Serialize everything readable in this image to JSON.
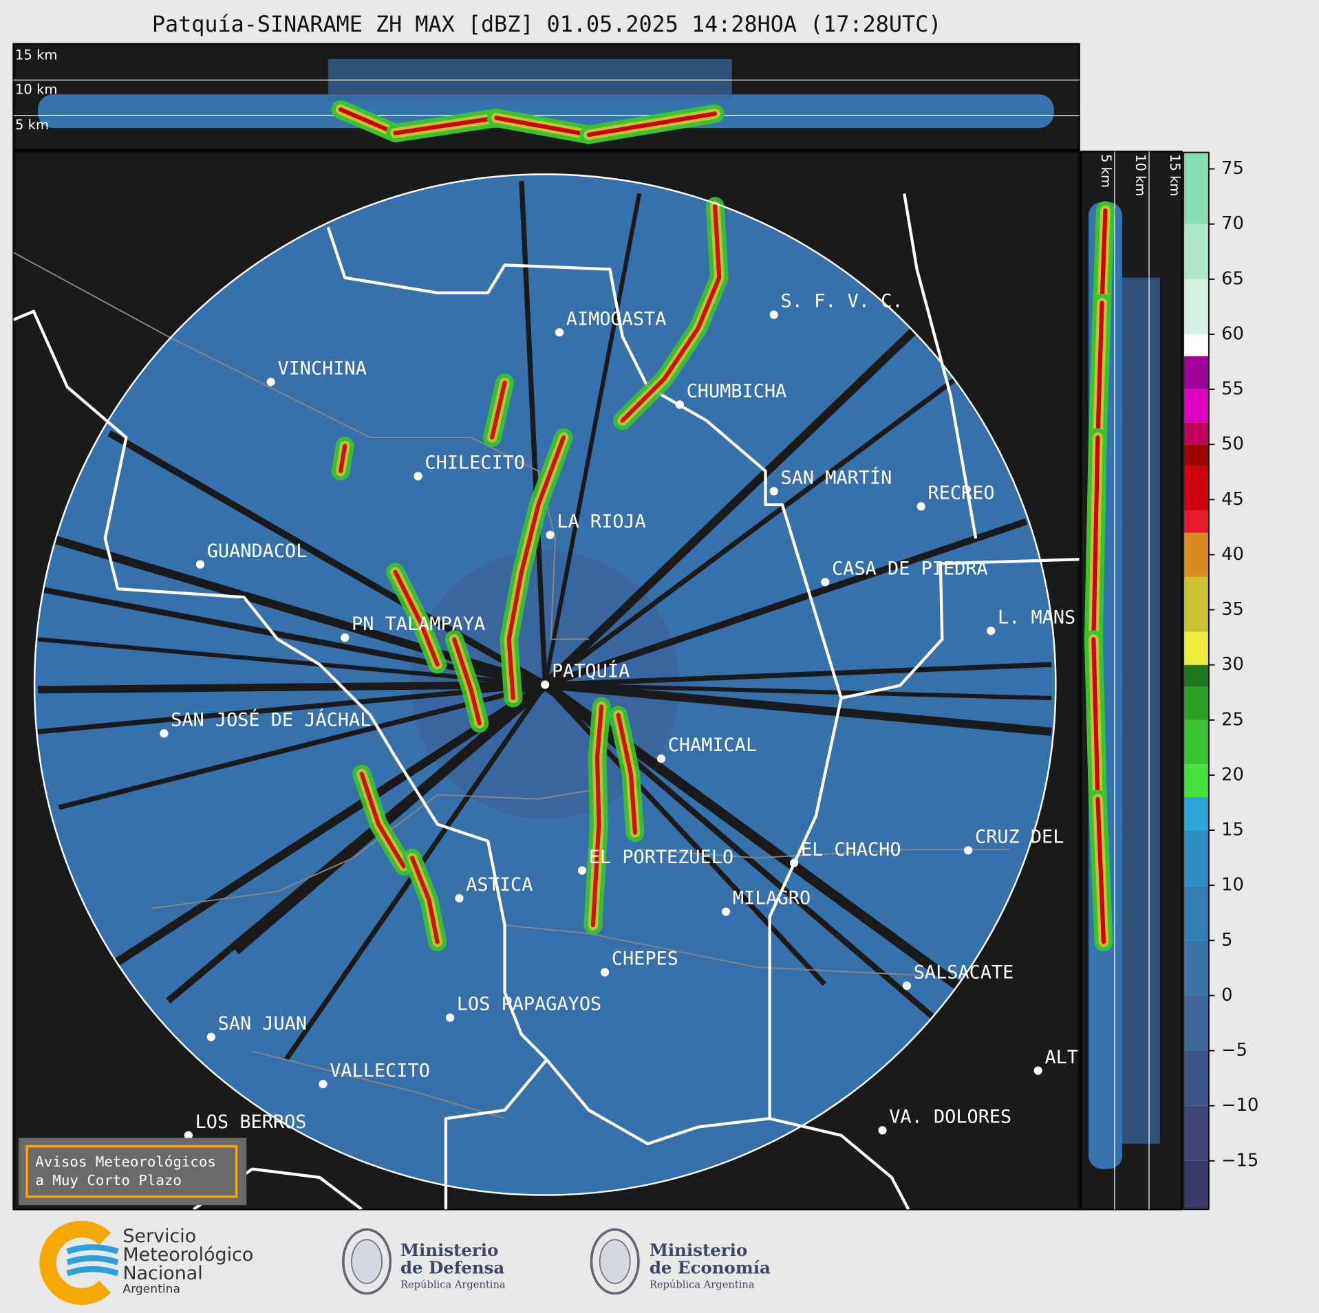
{
  "title": "Patquía-SINARAME ZH MAX [dBZ] 01.05.2025 14:28HOA (17:28UTC)",
  "height_scale": {
    "top": [
      "15 km",
      "10 km",
      "5 km"
    ],
    "side": [
      "5 km",
      "10 km",
      "15 km"
    ]
  },
  "places": [
    "AIMOGASTA",
    "S. F. V. C.",
    "VINCHINA",
    "CHUMBICHA",
    "CHILECITO",
    "SAN MARTÍN",
    "RECREO",
    "LA RIOJA",
    "GUANDACOL",
    "CASA DE PIEDRA",
    "L. MANS",
    "PN TALAMPAYA",
    "PATQUÍA",
    "SAN JOSÉ DE JÁCHAL",
    "CHAMICAL",
    "CRUZ DEL",
    "EL CHACHO",
    "EL PORTEZUELO",
    "ASTICA",
    "MILAGRO",
    "CHEPES",
    "SALSACATE",
    "LOS PAPAGAYOS",
    "SAN JUAN",
    "ALT",
    "VALLECITO",
    "VA. DOLORES",
    "LOS BERROS"
  ],
  "colorbar": {
    "lim": [
      -19.4,
      76.5
    ],
    "ticks": [
      {
        "value": -15,
        "label": "−15"
      },
      {
        "value": -10,
        "label": "−10"
      },
      {
        "value": -5,
        "label": "−5"
      },
      0,
      5,
      10,
      15,
      20,
      25,
      30,
      35,
      40,
      45,
      50,
      55,
      60,
      65,
      70,
      75
    ],
    "bands": [
      {
        "from": -19.4,
        "to": -15,
        "color": "#3b3b6a"
      },
      {
        "from": -15,
        "to": -10,
        "color": "#3e4778"
      },
      {
        "from": -10,
        "to": -5,
        "color": "#3f5588"
      },
      {
        "from": -5,
        "to": 0,
        "color": "#3d6598"
      },
      {
        "from": 0,
        "to": 5,
        "color": "#3973a8"
      },
      {
        "from": 5,
        "to": 10,
        "color": "#347fb6"
      },
      {
        "from": 10,
        "to": 15,
        "color": "#2e8dc2"
      },
      {
        "from": 15,
        "to": 18,
        "color": "#2aa6d8"
      },
      {
        "from": 18,
        "to": 21,
        "color": "#44e23a"
      },
      {
        "from": 21,
        "to": 25,
        "color": "#38c42f"
      },
      {
        "from": 25,
        "to": 28,
        "color": "#2ba226"
      },
      {
        "from": 28,
        "to": 30,
        "color": "#20781c"
      },
      {
        "from": 30,
        "to": 33,
        "color": "#eeee3a"
      },
      {
        "from": 33,
        "to": 38,
        "color": "#c8c232"
      },
      {
        "from": 38,
        "to": 42,
        "color": "#d98c1e"
      },
      {
        "from": 42,
        "to": 44,
        "color": "#e8182e"
      },
      {
        "from": 44,
        "to": 48,
        "color": "#d00010"
      },
      {
        "from": 48,
        "to": 50,
        "color": "#a00000"
      },
      {
        "from": 50,
        "to": 52,
        "color": "#c0005a"
      },
      {
        "from": 52,
        "to": 55,
        "color": "#e000c0"
      },
      {
        "from": 55,
        "to": 58,
        "color": "#a0009c"
      },
      {
        "from": 58,
        "to": 60,
        "color": "#ffffff"
      },
      {
        "from": 60,
        "to": 65,
        "color": "#d6f0e2"
      },
      {
        "from": 65,
        "to": 70,
        "color": "#b0e8cc"
      },
      {
        "from": 70,
        "to": 76.5,
        "color": "#86dcb4"
      }
    ]
  },
  "notice": {
    "lines": [
      "Avisos Meteorológicos",
      "a Muy Corto Plazo"
    ]
  },
  "logos": [
    {
      "lines": [
        "Servicio",
        "Meteorológico",
        "Nacional",
        "Argentina"
      ]
    },
    {
      "lines": [
        "Ministerio",
        "de Defensa",
        "República Argentina"
      ]
    },
    {
      "lines": [
        "Ministerio",
        "de Economía",
        "República Argentina"
      ]
    }
  ]
}
